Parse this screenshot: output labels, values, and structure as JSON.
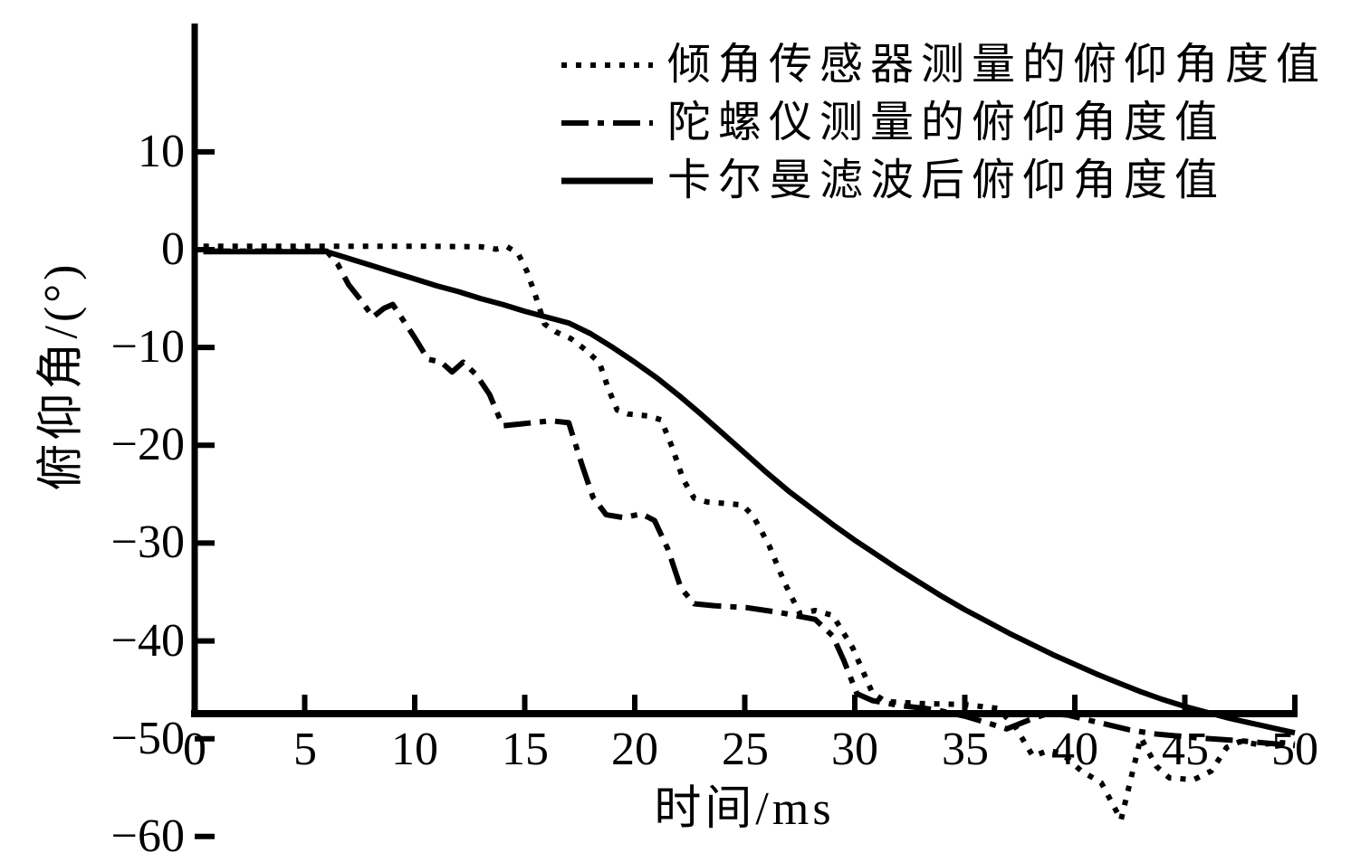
{
  "figure": {
    "background_color": "#ffffff",
    "ink_color": "#000000"
  },
  "chart_data": {
    "type": "line",
    "title": "",
    "xlabel": "时间/ms",
    "ylabel": "俯仰角/(°)",
    "xlim": [
      0,
      50
    ],
    "ylim": [
      -60,
      10
    ],
    "x_ticks": [
      0,
      5,
      10,
      15,
      20,
      25,
      30,
      35,
      40,
      45,
      50
    ],
    "y_ticks": [
      10,
      0,
      -10,
      -20,
      -30,
      -40,
      -50,
      -60
    ],
    "grid": false,
    "legend_position": "top-right-inside",
    "series": [
      {
        "name": "倾角传感器测量的俯仰角度值",
        "line_style": "dotted",
        "color": "#000000",
        "points": [
          [
            0.4,
            0.35
          ],
          [
            6,
            0.35
          ],
          [
            10,
            0.35
          ],
          [
            13,
            0.3
          ],
          [
            13.7,
            0.05
          ],
          [
            14.2,
            0.3
          ],
          [
            14.7,
            -0.4
          ],
          [
            15.1,
            -2.2
          ],
          [
            15.5,
            -4.8
          ],
          [
            15.9,
            -7.6
          ],
          [
            16.4,
            -8.4
          ],
          [
            17.1,
            -9.1
          ],
          [
            17.8,
            -10.3
          ],
          [
            18.4,
            -11.6
          ],
          [
            18.8,
            -14.2
          ],
          [
            19.2,
            -16.4
          ],
          [
            19.7,
            -16.8
          ],
          [
            20.6,
            -17.0
          ],
          [
            21.2,
            -17.4
          ],
          [
            21.7,
            -20.2
          ],
          [
            22.2,
            -23.5
          ],
          [
            22.7,
            -25.4
          ],
          [
            23.3,
            -25.8
          ],
          [
            24.9,
            -26.1
          ],
          [
            25.4,
            -27.3
          ],
          [
            26.1,
            -30.2
          ],
          [
            26.8,
            -34.0
          ],
          [
            27.5,
            -37.2
          ],
          [
            28.2,
            -36.9
          ],
          [
            29.0,
            -37.4
          ],
          [
            29.9,
            -40.7
          ],
          [
            30.8,
            -45.3
          ],
          [
            31.4,
            -46.2
          ],
          [
            33.0,
            -46.4
          ],
          [
            35.0,
            -46.5
          ],
          [
            36.5,
            -46.9
          ],
          [
            37.3,
            -48.8
          ],
          [
            38.1,
            -51.8
          ],
          [
            38.8,
            -51.2
          ],
          [
            39.4,
            -51.5
          ],
          [
            40.3,
            -53.3
          ],
          [
            41.2,
            -54.5
          ],
          [
            41.7,
            -56.6
          ],
          [
            42.1,
            -58.3
          ],
          [
            42.6,
            -53.6
          ],
          [
            43.0,
            -49.9
          ],
          [
            43.7,
            -52.8
          ],
          [
            44.3,
            -54.0
          ],
          [
            45.4,
            -54.2
          ],
          [
            46.2,
            -53.3
          ],
          [
            46.9,
            -50.9
          ],
          [
            47.5,
            -50.3
          ],
          [
            48.4,
            -50.6
          ],
          [
            49.3,
            -50.4
          ],
          [
            50,
            -50.5
          ]
        ]
      },
      {
        "name": "陀螺仪测量的俯仰角度值",
        "line_style": "dashdot",
        "color": "#000000",
        "points": [
          [
            0.4,
            -0.15
          ],
          [
            6,
            -0.15
          ],
          [
            6.5,
            -1.5
          ],
          [
            7.0,
            -3.6
          ],
          [
            7.6,
            -5.3
          ],
          [
            8.1,
            -6.9
          ],
          [
            8.6,
            -6.0
          ],
          [
            9.0,
            -5.6
          ],
          [
            9.5,
            -7.3
          ],
          [
            10.0,
            -9.0
          ],
          [
            10.6,
            -11.2
          ],
          [
            11.2,
            -11.5
          ],
          [
            11.7,
            -12.5
          ],
          [
            12.2,
            -11.5
          ],
          [
            12.8,
            -12.8
          ],
          [
            13.4,
            -14.8
          ],
          [
            14.0,
            -18.0
          ],
          [
            14.9,
            -17.8
          ],
          [
            16.2,
            -17.5
          ],
          [
            17.0,
            -17.7
          ],
          [
            17.6,
            -22.0
          ],
          [
            18.1,
            -25.3
          ],
          [
            18.7,
            -27.1
          ],
          [
            19.5,
            -27.4
          ],
          [
            20.3,
            -27.0
          ],
          [
            20.9,
            -27.7
          ],
          [
            21.5,
            -30.6
          ],
          [
            22.1,
            -34.6
          ],
          [
            22.7,
            -36.2
          ],
          [
            23.6,
            -36.4
          ],
          [
            25.1,
            -36.6
          ],
          [
            26.6,
            -37.1
          ],
          [
            28.2,
            -37.8
          ],
          [
            29.0,
            -39.5
          ],
          [
            29.5,
            -42.0
          ],
          [
            30.1,
            -45.4
          ],
          [
            30.8,
            -46.1
          ],
          [
            32.0,
            -46.6
          ],
          [
            33.6,
            -47.0
          ],
          [
            35.0,
            -47.7
          ],
          [
            36.2,
            -48.5
          ],
          [
            36.9,
            -49.0
          ],
          [
            37.9,
            -48.1
          ],
          [
            38.8,
            -47.4
          ],
          [
            39.7,
            -47.6
          ],
          [
            41.0,
            -48.3
          ],
          [
            42.5,
            -49.1
          ],
          [
            43.6,
            -49.5
          ],
          [
            45.5,
            -49.9
          ],
          [
            47.5,
            -50.2
          ],
          [
            50,
            -50.7
          ]
        ]
      },
      {
        "name": "卡尔曼滤波后俯仰角度值",
        "line_style": "solid",
        "color": "#000000",
        "points": [
          [
            0.4,
            -0.2
          ],
          [
            6,
            -0.2
          ],
          [
            7,
            -0.9
          ],
          [
            8,
            -1.6
          ],
          [
            9,
            -2.3
          ],
          [
            10,
            -3.0
          ],
          [
            11,
            -3.7
          ],
          [
            12,
            -4.3
          ],
          [
            13,
            -5.0
          ],
          [
            14,
            -5.6
          ],
          [
            15,
            -6.3
          ],
          [
            16,
            -6.9
          ],
          [
            17,
            -7.5
          ],
          [
            18,
            -8.6
          ],
          [
            19,
            -10.0
          ],
          [
            20,
            -11.5
          ],
          [
            21,
            -13.1
          ],
          [
            22,
            -14.9
          ],
          [
            23,
            -16.8
          ],
          [
            24,
            -18.8
          ],
          [
            25,
            -20.8
          ],
          [
            26,
            -22.8
          ],
          [
            27,
            -24.7
          ],
          [
            28,
            -26.4
          ],
          [
            29,
            -28.1
          ],
          [
            30,
            -29.7
          ],
          [
            31,
            -31.2
          ],
          [
            32,
            -32.7
          ],
          [
            33,
            -34.1
          ],
          [
            34,
            -35.5
          ],
          [
            35,
            -36.8
          ],
          [
            36,
            -38.0
          ],
          [
            37,
            -39.2
          ],
          [
            38,
            -40.3
          ],
          [
            39,
            -41.4
          ],
          [
            40,
            -42.4
          ],
          [
            41,
            -43.4
          ],
          [
            42,
            -44.3
          ],
          [
            43,
            -45.2
          ],
          [
            44,
            -46.0
          ],
          [
            45,
            -46.7
          ],
          [
            46,
            -47.3
          ],
          [
            47,
            -47.9
          ],
          [
            48,
            -48.4
          ],
          [
            49,
            -48.9
          ],
          [
            50,
            -49.4
          ]
        ]
      }
    ]
  }
}
